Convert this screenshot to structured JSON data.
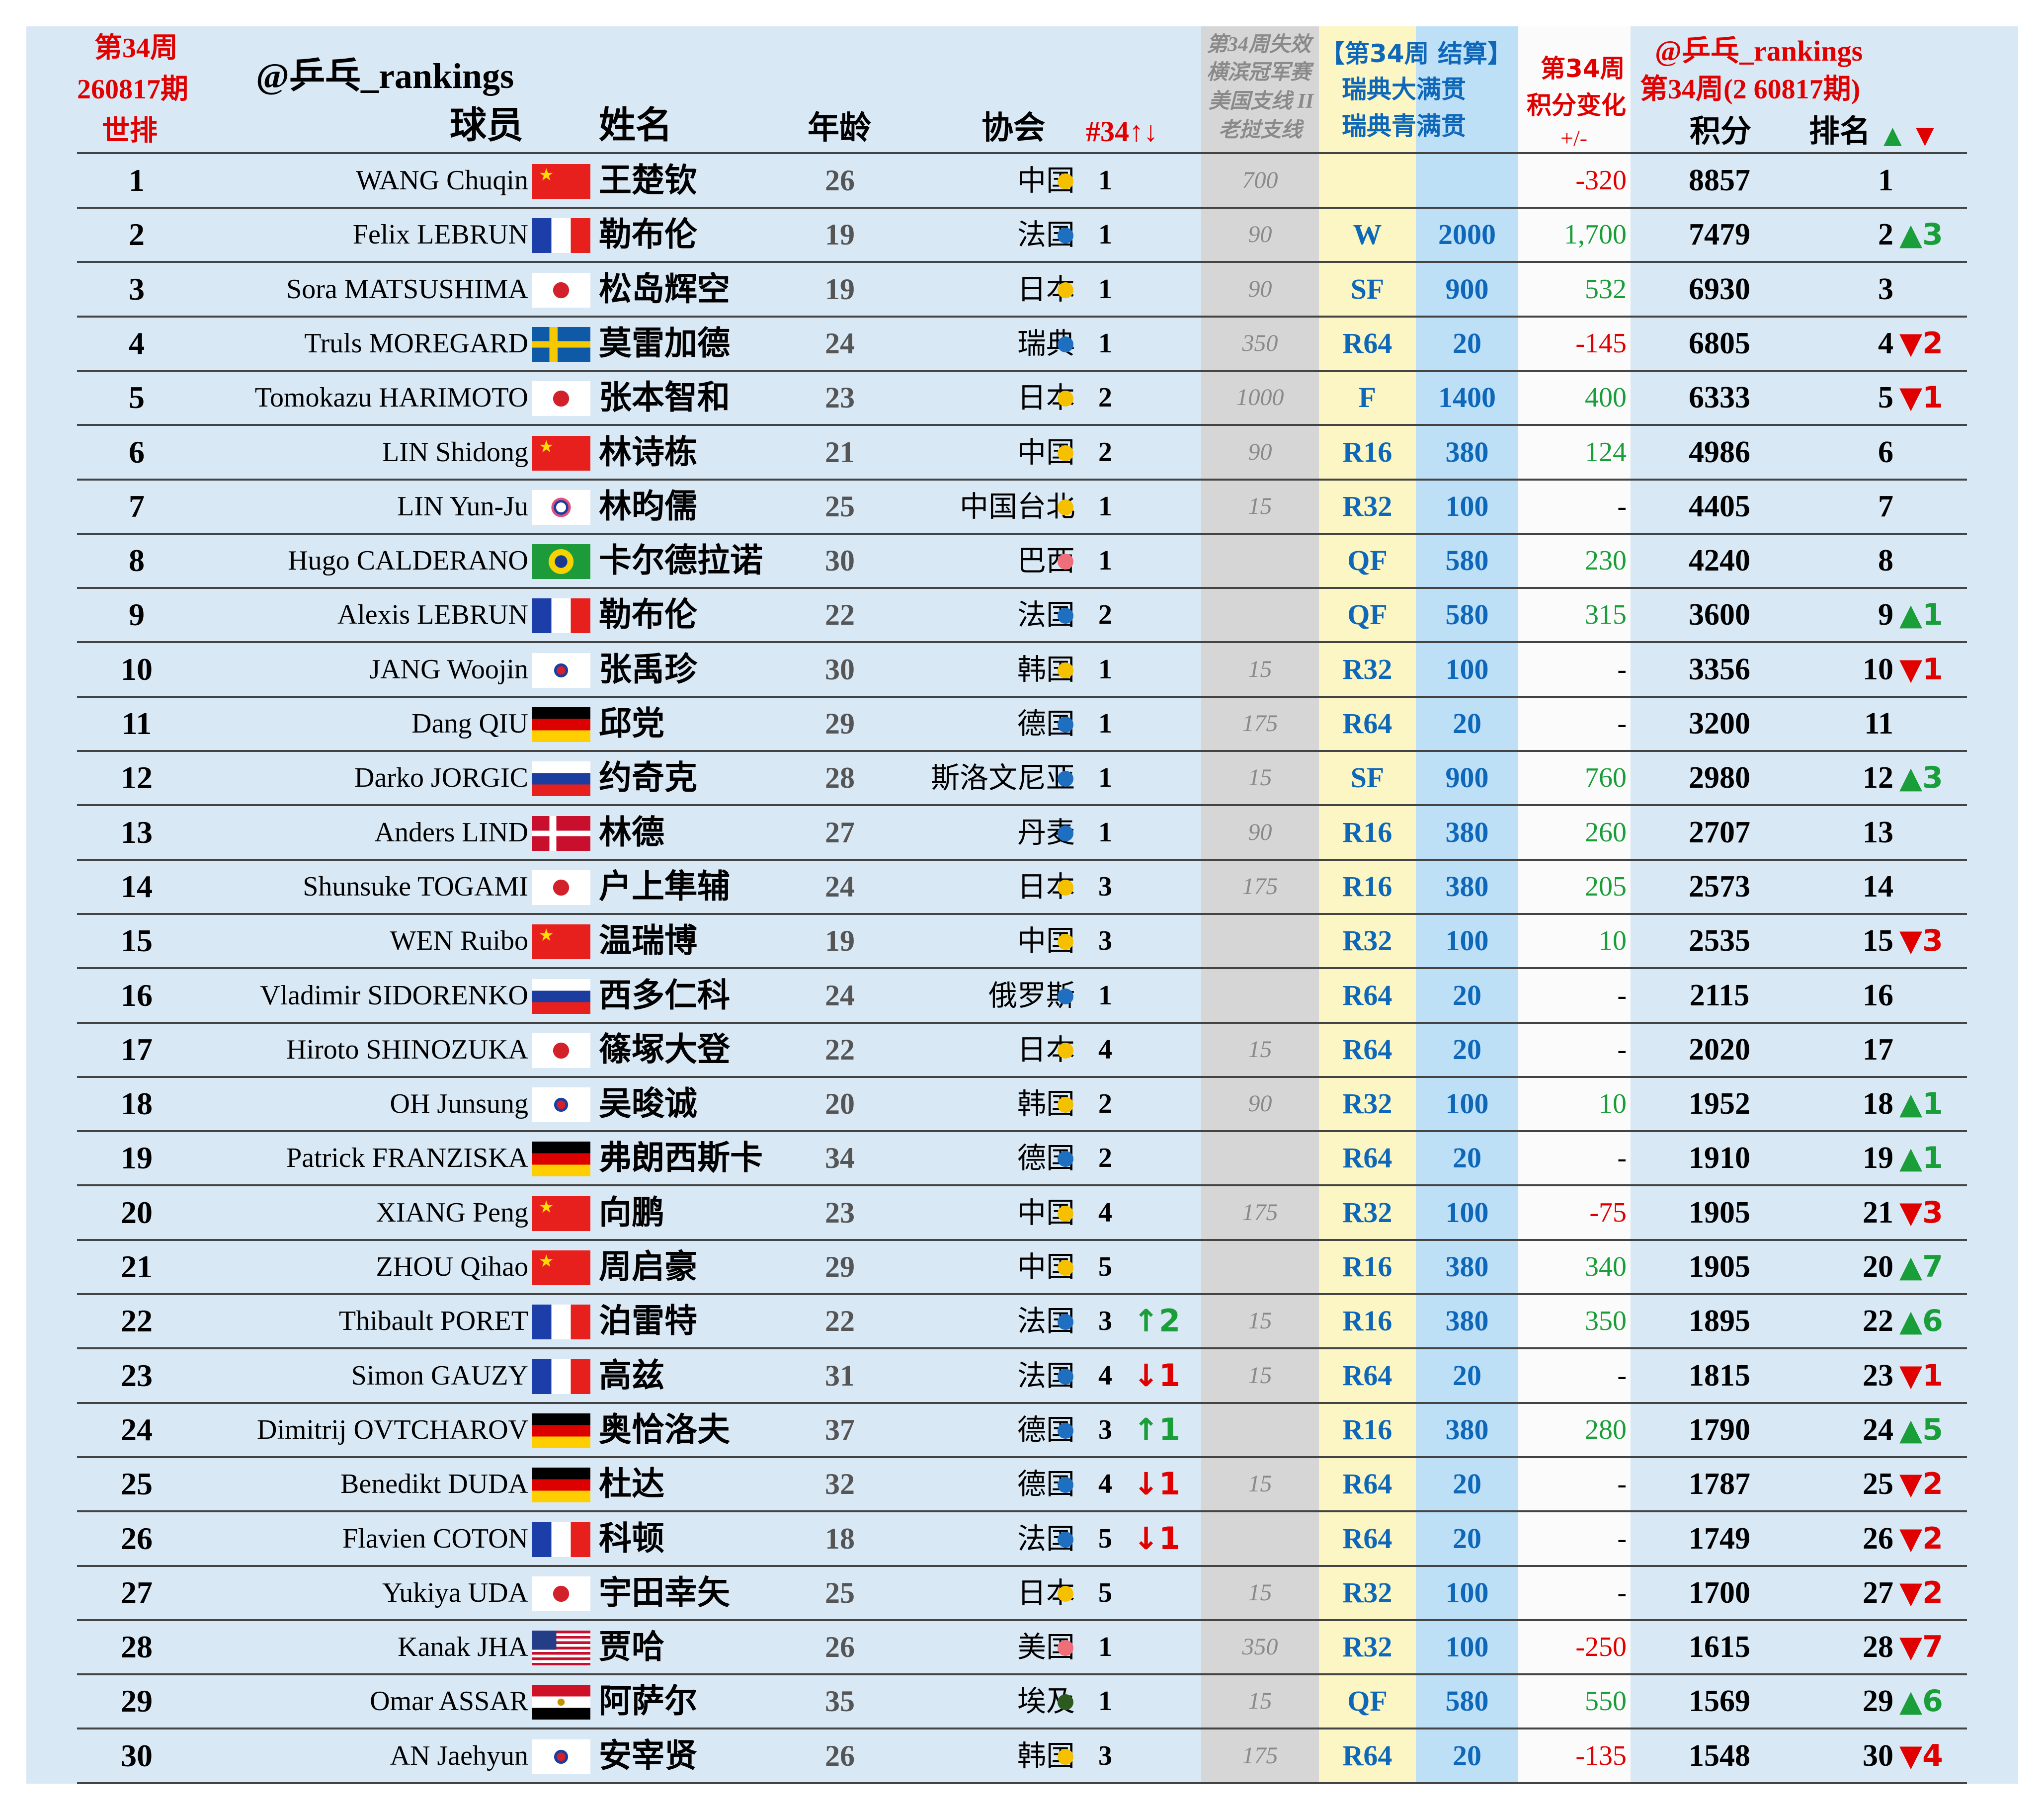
{
  "header": {
    "week_line": "第34周",
    "period_line": "260817期",
    "world_rank_label": "世排",
    "handle": "@乒乓_rankings",
    "col_player": "球员",
    "col_name": "姓名",
    "col_age": "年龄",
    "col_assoc": "协会",
    "col_nat_rank": "#34↑↓",
    "lost_l1": "第34周失效",
    "lost_l2": "横滨冠军赛",
    "lost_l3": "美国支线 II",
    "lost_l4": "老挝支线",
    "settle_l1": "【第34周 结算】",
    "settle_l2a": "瑞典大满贯",
    "settle_l3a": "瑞典青满贯",
    "chg_l1": "第34周",
    "chg_l2": "积分变化",
    "chg_l3": "+/-",
    "right_handle": "@乒乓_rankings",
    "right_period": "第34周(2 60817期)",
    "col_points": "积分",
    "col_rank": "排名",
    "up_marker": "▲",
    "down_marker": "▼"
  },
  "colors": {
    "accent_red": "#e00000",
    "blue_text": "#0e67b8",
    "green_text": "#1a9e3a",
    "bg_light_blue": "#d9e8f5"
  },
  "rows": [
    {
      "rank": "1",
      "name": "WANG Chuqin",
      "flag": "cn",
      "cn": "王楚钦",
      "age": "26",
      "assoc": "中国",
      "dot": "#f5c000",
      "nrank": "1",
      "arrow": "",
      "arrow_dir": "",
      "lost": "700",
      "result": "",
      "pts": "",
      "chg": "-320",
      "chg_type": "neg",
      "total": "8857",
      "new_rank": "1",
      "mv": "",
      "mv_dir": ""
    },
    {
      "rank": "2",
      "name": "Felix LEBRUN",
      "flag": "fr",
      "cn": "勒布伦",
      "age": "19",
      "assoc": "法国",
      "dot": "#1f6fc0",
      "nrank": "1",
      "arrow": "",
      "arrow_dir": "",
      "lost": "90",
      "result": "W",
      "pts": "2000",
      "chg": "1,700",
      "chg_type": "pos",
      "total": "7479",
      "new_rank": "2",
      "mv": "▲3",
      "mv_dir": "up"
    },
    {
      "rank": "3",
      "name": "Sora MATSUSHIMA",
      "flag": "jp",
      "cn": "松岛辉空",
      "age": "19",
      "assoc": "日本",
      "dot": "#f5c000",
      "nrank": "1",
      "arrow": "",
      "arrow_dir": "",
      "lost": "90",
      "result": "SF",
      "pts": "900",
      "chg": "532",
      "chg_type": "pos",
      "total": "6930",
      "new_rank": "3",
      "mv": "",
      "mv_dir": ""
    },
    {
      "rank": "4",
      "name": "Truls MOREGARD",
      "flag": "se",
      "cn": "莫雷加德",
      "age": "24",
      "assoc": "瑞典",
      "dot": "#1f6fc0",
      "nrank": "1",
      "arrow": "",
      "arrow_dir": "",
      "lost": "350",
      "result": "R64",
      "pts": "20",
      "chg": "-145",
      "chg_type": "neg",
      "total": "6805",
      "new_rank": "4",
      "mv": "▼2",
      "mv_dir": "down"
    },
    {
      "rank": "5",
      "name": "Tomokazu HARIMOTO",
      "flag": "jp",
      "cn": "张本智和",
      "age": "23",
      "assoc": "日本",
      "dot": "#f5c000",
      "nrank": "2",
      "arrow": "",
      "arrow_dir": "",
      "lost": "1000",
      "result": "F",
      "pts": "1400",
      "chg": "400",
      "chg_type": "pos",
      "total": "6333",
      "new_rank": "5",
      "mv": "▼1",
      "mv_dir": "down"
    },
    {
      "rank": "6",
      "name": "LIN Shidong",
      "flag": "cn",
      "cn": "林诗栋",
      "age": "21",
      "assoc": "中国",
      "dot": "#f5c000",
      "nrank": "2",
      "arrow": "",
      "arrow_dir": "",
      "lost": "90",
      "result": "R16",
      "pts": "380",
      "chg": "124",
      "chg_type": "pos",
      "total": "4986",
      "new_rank": "6",
      "mv": "",
      "mv_dir": ""
    },
    {
      "rank": "7",
      "name": "LIN Yun-Ju",
      "flag": "tw",
      "cn": "林昀儒",
      "age": "25",
      "assoc": "中国台北",
      "dot": "#f5c000",
      "nrank": "1",
      "arrow": "",
      "arrow_dir": "",
      "lost": "15",
      "result": "R32",
      "pts": "100",
      "chg": "-",
      "chg_type": "zero",
      "total": "4405",
      "new_rank": "7",
      "mv": "",
      "mv_dir": ""
    },
    {
      "rank": "8",
      "name": "Hugo CALDERANO",
      "flag": "br",
      "cn": "卡尔德拉诺",
      "age": "30",
      "assoc": "巴西",
      "dot": "#ee6f7a",
      "nrank": "1",
      "arrow": "",
      "arrow_dir": "",
      "lost": "",
      "result": "QF",
      "pts": "580",
      "chg": "230",
      "chg_type": "pos",
      "total": "4240",
      "new_rank": "8",
      "mv": "",
      "mv_dir": ""
    },
    {
      "rank": "9",
      "name": "Alexis LEBRUN",
      "flag": "fr",
      "cn": "勒布伦",
      "age": "22",
      "assoc": "法国",
      "dot": "#1f6fc0",
      "nrank": "2",
      "arrow": "",
      "arrow_dir": "",
      "lost": "",
      "result": "QF",
      "pts": "580",
      "chg": "315",
      "chg_type": "pos",
      "total": "3600",
      "new_rank": "9",
      "mv": "▲1",
      "mv_dir": "up"
    },
    {
      "rank": "10",
      "name": "JANG Woojin",
      "flag": "kr",
      "cn": "张禹珍",
      "age": "30",
      "assoc": "韩国",
      "dot": "#f5c000",
      "nrank": "1",
      "arrow": "",
      "arrow_dir": "",
      "lost": "15",
      "result": "R32",
      "pts": "100",
      "chg": "-",
      "chg_type": "zero",
      "total": "3356",
      "new_rank": "10",
      "mv": "▼1",
      "mv_dir": "down"
    },
    {
      "rank": "11",
      "name": "Dang QIU",
      "flag": "de",
      "cn": "邱党",
      "age": "29",
      "assoc": "德国",
      "dot": "#1f6fc0",
      "nrank": "1",
      "arrow": "",
      "arrow_dir": "",
      "lost": "175",
      "result": "R64",
      "pts": "20",
      "chg": "-",
      "chg_type": "zero",
      "total": "3200",
      "new_rank": "11",
      "mv": "",
      "mv_dir": ""
    },
    {
      "rank": "12",
      "name": "Darko JORGIC",
      "flag": "si",
      "cn": "约奇克",
      "age": "28",
      "assoc": "斯洛文尼亚",
      "dot": "#1f6fc0",
      "nrank": "1",
      "arrow": "",
      "arrow_dir": "",
      "lost": "15",
      "result": "SF",
      "pts": "900",
      "chg": "760",
      "chg_type": "pos",
      "total": "2980",
      "new_rank": "12",
      "mv": "▲3",
      "mv_dir": "up"
    },
    {
      "rank": "13",
      "name": "Anders LIND",
      "flag": "dk",
      "cn": "林德",
      "age": "27",
      "assoc": "丹麦",
      "dot": "#1f6fc0",
      "nrank": "1",
      "arrow": "",
      "arrow_dir": "",
      "lost": "90",
      "result": "R16",
      "pts": "380",
      "chg": "260",
      "chg_type": "pos",
      "total": "2707",
      "new_rank": "13",
      "mv": "",
      "mv_dir": ""
    },
    {
      "rank": "14",
      "name": "Shunsuke TOGAMI",
      "flag": "jp",
      "cn": "户上隼辅",
      "age": "24",
      "assoc": "日本",
      "dot": "#f5c000",
      "nrank": "3",
      "arrow": "",
      "arrow_dir": "",
      "lost": "175",
      "result": "R16",
      "pts": "380",
      "chg": "205",
      "chg_type": "pos",
      "total": "2573",
      "new_rank": "14",
      "mv": "",
      "mv_dir": ""
    },
    {
      "rank": "15",
      "name": "WEN Ruibo",
      "flag": "cn",
      "cn": "温瑞博",
      "age": "19",
      "assoc": "中国",
      "dot": "#f5c000",
      "nrank": "3",
      "arrow": "",
      "arrow_dir": "",
      "lost": "",
      "result": "R32",
      "pts": "100",
      "chg": "10",
      "chg_type": "pos",
      "total": "2535",
      "new_rank": "15",
      "mv": "▼3",
      "mv_dir": "down"
    },
    {
      "rank": "16",
      "name": "Vladimir SIDORENKO",
      "flag": "ru",
      "cn": "西多仁科",
      "age": "24",
      "assoc": "俄罗斯",
      "dot": "#1f6fc0",
      "nrank": "1",
      "arrow": "",
      "arrow_dir": "",
      "lost": "",
      "result": "R64",
      "pts": "20",
      "chg": "-",
      "chg_type": "zero",
      "total": "2115",
      "new_rank": "16",
      "mv": "",
      "mv_dir": ""
    },
    {
      "rank": "17",
      "name": "Hiroto SHINOZUKA",
      "flag": "jp",
      "cn": "篠塚大登",
      "age": "22",
      "assoc": "日本",
      "dot": "#f5c000",
      "nrank": "4",
      "arrow": "",
      "arrow_dir": "",
      "lost": "15",
      "result": "R64",
      "pts": "20",
      "chg": "-",
      "chg_type": "zero",
      "total": "2020",
      "new_rank": "17",
      "mv": "",
      "mv_dir": ""
    },
    {
      "rank": "18",
      "name": "OH Junsung",
      "flag": "kr",
      "cn": "吴晙诚",
      "age": "20",
      "assoc": "韩国",
      "dot": "#f5c000",
      "nrank": "2",
      "arrow": "",
      "arrow_dir": "",
      "lost": "90",
      "result": "R32",
      "pts": "100",
      "chg": "10",
      "chg_type": "pos",
      "total": "1952",
      "new_rank": "18",
      "mv": "▲1",
      "mv_dir": "up"
    },
    {
      "rank": "19",
      "name": "Patrick FRANZISKA",
      "flag": "de",
      "cn": "弗朗西斯卡",
      "age": "34",
      "assoc": "德国",
      "dot": "#1f6fc0",
      "nrank": "2",
      "arrow": "",
      "arrow_dir": "",
      "lost": "",
      "result": "R64",
      "pts": "20",
      "chg": "-",
      "chg_type": "zero",
      "total": "1910",
      "new_rank": "19",
      "mv": "▲1",
      "mv_dir": "up"
    },
    {
      "rank": "20",
      "name": "XIANG Peng",
      "flag": "cn",
      "cn": "向鹏",
      "age": "23",
      "assoc": "中国",
      "dot": "#f5c000",
      "nrank": "4",
      "arrow": "",
      "arrow_dir": "",
      "lost": "175",
      "result": "R32",
      "pts": "100",
      "chg": "-75",
      "chg_type": "neg",
      "total": "1905",
      "new_rank": "21",
      "mv": "▼3",
      "mv_dir": "down"
    },
    {
      "rank": "21",
      "name": "ZHOU Qihao",
      "flag": "cn",
      "cn": "周启豪",
      "age": "29",
      "assoc": "中国",
      "dot": "#f5c000",
      "nrank": "5",
      "arrow": "",
      "arrow_dir": "",
      "lost": "",
      "result": "R16",
      "pts": "380",
      "chg": "340",
      "chg_type": "pos",
      "total": "1905",
      "new_rank": "20",
      "mv": "▲7",
      "mv_dir": "up"
    },
    {
      "rank": "22",
      "name": "Thibault PORET",
      "flag": "fr",
      "cn": "泊雷特",
      "age": "22",
      "assoc": "法国",
      "dot": "#1f6fc0",
      "nrank": "3",
      "arrow": "↑2",
      "arrow_dir": "up",
      "lost": "15",
      "result": "R16",
      "pts": "380",
      "chg": "350",
      "chg_type": "pos",
      "total": "1895",
      "new_rank": "22",
      "mv": "▲6",
      "mv_dir": "up"
    },
    {
      "rank": "23",
      "name": "Simon GAUZY",
      "flag": "fr",
      "cn": "高兹",
      "age": "31",
      "assoc": "法国",
      "dot": "#1f6fc0",
      "nrank": "4",
      "arrow": "↓1",
      "arrow_dir": "down",
      "lost": "15",
      "result": "R64",
      "pts": "20",
      "chg": "-",
      "chg_type": "zero",
      "total": "1815",
      "new_rank": "23",
      "mv": "▼1",
      "mv_dir": "down"
    },
    {
      "rank": "24",
      "name": "Dimitrij OVTCHAROV",
      "flag": "de",
      "cn": "奥恰洛夫",
      "age": "37",
      "assoc": "德国",
      "dot": "#1f6fc0",
      "nrank": "3",
      "arrow": "↑1",
      "arrow_dir": "up",
      "lost": "",
      "result": "R16",
      "pts": "380",
      "chg": "280",
      "chg_type": "pos",
      "total": "1790",
      "new_rank": "24",
      "mv": "▲5",
      "mv_dir": "up"
    },
    {
      "rank": "25",
      "name": "Benedikt DUDA",
      "flag": "de",
      "cn": "杜达",
      "age": "32",
      "assoc": "德国",
      "dot": "#1f6fc0",
      "nrank": "4",
      "arrow": "↓1",
      "arrow_dir": "down",
      "lost": "15",
      "result": "R64",
      "pts": "20",
      "chg": "-",
      "chg_type": "zero",
      "total": "1787",
      "new_rank": "25",
      "mv": "▼2",
      "mv_dir": "down"
    },
    {
      "rank": "26",
      "name": "Flavien COTON",
      "flag": "fr",
      "cn": "科顿",
      "age": "18",
      "assoc": "法国",
      "dot": "#1f6fc0",
      "nrank": "5",
      "arrow": "↓1",
      "arrow_dir": "down",
      "lost": "",
      "result": "R64",
      "pts": "20",
      "chg": "-",
      "chg_type": "zero",
      "total": "1749",
      "new_rank": "26",
      "mv": "▼2",
      "mv_dir": "down"
    },
    {
      "rank": "27",
      "name": "Yukiya UDA",
      "flag": "jp",
      "cn": "宇田幸矢",
      "age": "25",
      "assoc": "日本",
      "dot": "#f5c000",
      "nrank": "5",
      "arrow": "",
      "arrow_dir": "",
      "lost": "15",
      "result": "R32",
      "pts": "100",
      "chg": "-",
      "chg_type": "zero",
      "total": "1700",
      "new_rank": "27",
      "mv": "▼2",
      "mv_dir": "down"
    },
    {
      "rank": "28",
      "name": "Kanak JHA",
      "flag": "us",
      "cn": "贾哈",
      "age": "26",
      "assoc": "美国",
      "dot": "#ee6f7a",
      "nrank": "1",
      "arrow": "",
      "arrow_dir": "",
      "lost": "350",
      "result": "R32",
      "pts": "100",
      "chg": "-250",
      "chg_type": "neg",
      "total": "1615",
      "new_rank": "28",
      "mv": "▼7",
      "mv_dir": "down"
    },
    {
      "rank": "29",
      "name": "Omar ASSAR",
      "flag": "eg",
      "cn": "阿萨尔",
      "age": "35",
      "assoc": "埃及",
      "dot": "#2d5a1e",
      "nrank": "1",
      "arrow": "",
      "arrow_dir": "",
      "lost": "15",
      "result": "QF",
      "pts": "580",
      "chg": "550",
      "chg_type": "pos",
      "total": "1569",
      "new_rank": "29",
      "mv": "▲6",
      "mv_dir": "up"
    },
    {
      "rank": "30",
      "name": "AN Jaehyun",
      "flag": "kr",
      "cn": "安宰贤",
      "age": "26",
      "assoc": "韩国",
      "dot": "#f5c000",
      "nrank": "3",
      "arrow": "",
      "arrow_dir": "",
      "lost": "175",
      "result": "R64",
      "pts": "20",
      "chg": "-135",
      "chg_type": "neg",
      "total": "1548",
      "new_rank": "30",
      "mv": "▼4",
      "mv_dir": "down"
    }
  ]
}
